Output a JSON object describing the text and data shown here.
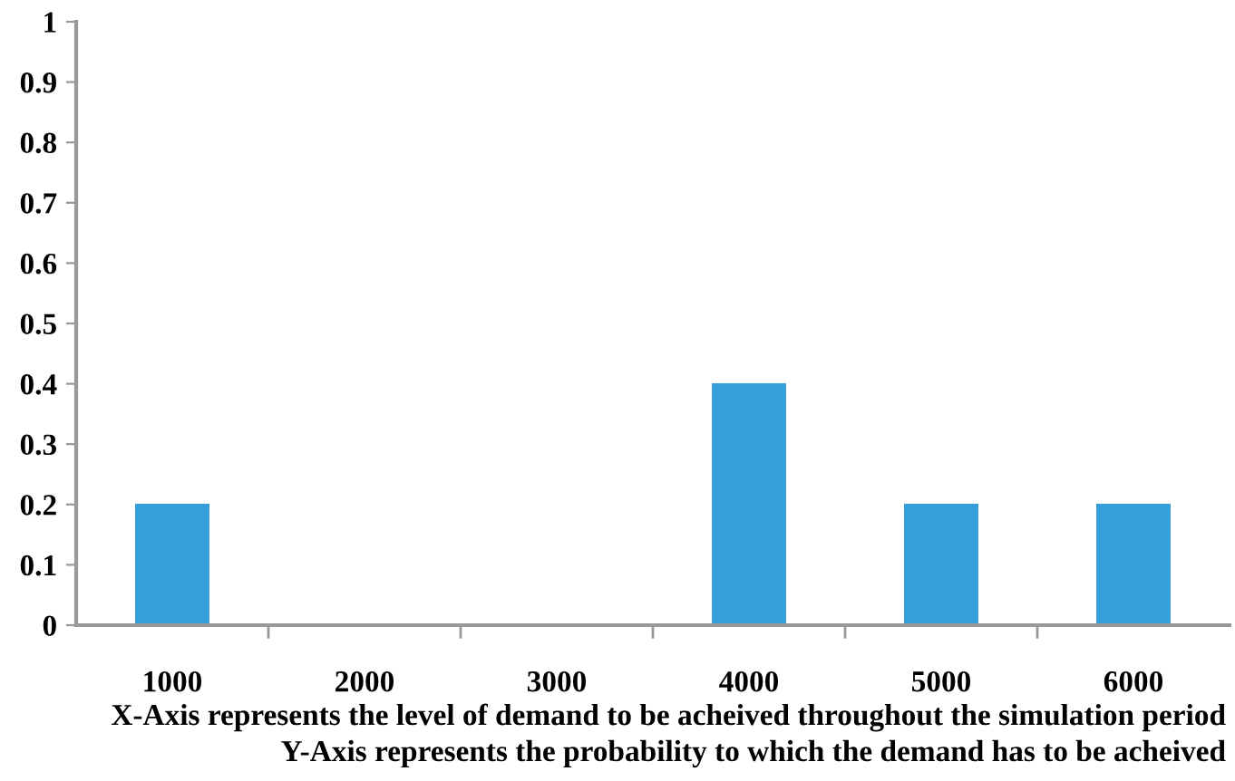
{
  "chart_data": {
    "type": "bar",
    "categories": [
      "1000",
      "2000",
      "3000",
      "4000",
      "5000",
      "6000"
    ],
    "values": [
      0.2,
      0,
      0,
      0.4,
      0.2,
      0.2
    ],
    "color": "#359fd9",
    "ylim": [
      0,
      1
    ],
    "yticks": [
      0,
      0.1,
      0.2,
      0.3,
      0.4,
      0.5,
      0.6,
      0.7,
      0.8,
      0.9,
      1
    ],
    "grid": false,
    "annotations": [
      "X-Axis represents the level of demand to be acheived throughout the simulation period",
      "Y-Axis represents the probability to which the demand has to be acheived"
    ]
  }
}
